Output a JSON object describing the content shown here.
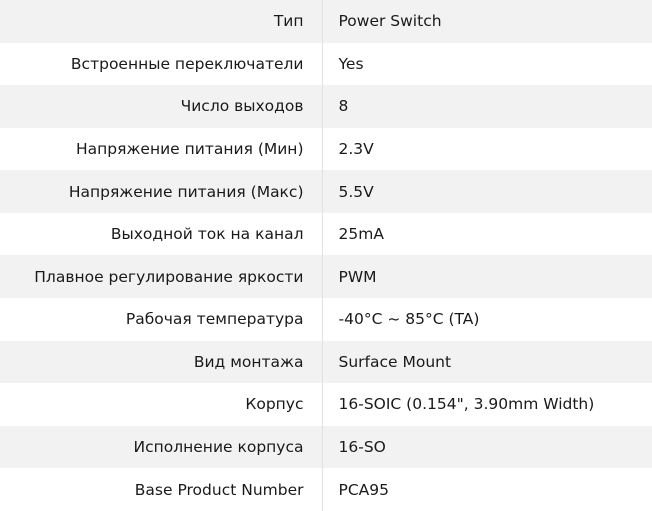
{
  "specs": [
    {
      "label": "Тип",
      "value": "Power Switch"
    },
    {
      "label": "Встроенные переключатели",
      "value": "Yes"
    },
    {
      "label": "Число выходов",
      "value": "8"
    },
    {
      "label": "Напряжение питания (Мин)",
      "value": "2.3V"
    },
    {
      "label": "Напряжение питания (Макс)",
      "value": "5.5V"
    },
    {
      "label": "Выходной ток на канал",
      "value": "25mA"
    },
    {
      "label": "Плавное регулирование яркости",
      "value": "PWM"
    },
    {
      "label": "Рабочая температура",
      "value": "-40°C ~ 85°C (TA)"
    },
    {
      "label": "Вид монтажа",
      "value": "Surface Mount"
    },
    {
      "label": "Корпус",
      "value": "16-SOIC (0.154\", 3.90mm Width)"
    },
    {
      "label": "Исполнение корпуса",
      "value": "16-SO"
    },
    {
      "label": "Base Product Number",
      "value": "PCA95"
    }
  ]
}
